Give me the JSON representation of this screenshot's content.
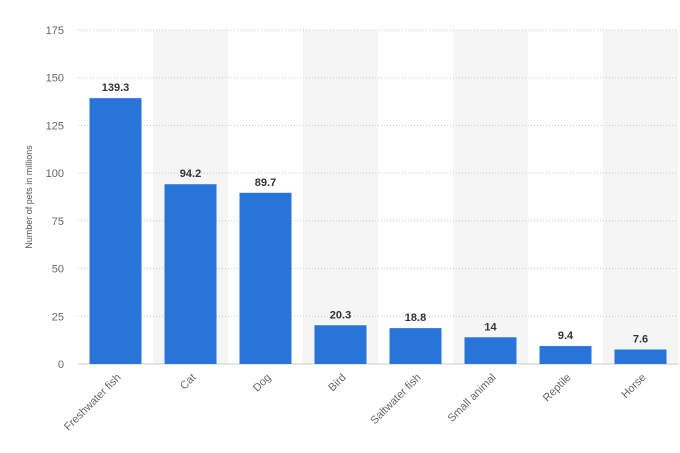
{
  "chart_data": {
    "type": "bar",
    "title": "",
    "xlabel": "",
    "ylabel": "Number of pets in millions",
    "categories": [
      "Freshwater fish",
      "Cat",
      "Dog",
      "Bird",
      "Saltwater fish",
      "Small animal",
      "Reptile",
      "Horse"
    ],
    "values": [
      139.3,
      94.2,
      89.7,
      20.3,
      18.8,
      14,
      9.4,
      7.6
    ],
    "value_labels": [
      "139.3",
      "94.2",
      "89.7",
      "20.3",
      "18.8",
      "14",
      "9.4",
      "7.6"
    ],
    "ylim": [
      0,
      175
    ],
    "yticks": [
      0,
      25,
      50,
      75,
      100,
      125,
      150,
      175
    ],
    "ytick_labels": [
      "0",
      "25",
      "50",
      "75",
      "100",
      "125",
      "150",
      "175"
    ],
    "grid": true,
    "legend": "none",
    "bar_color": "#2874d9",
    "alt_band_color": "#f5f5f5"
  }
}
